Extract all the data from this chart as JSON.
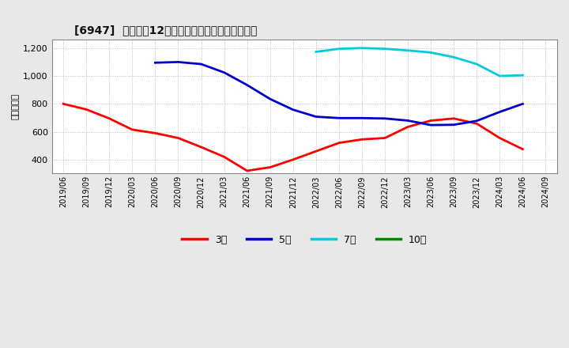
{
  "title": "[6947]  経常利益12か月移動合計の標準偏差の推移",
  "ylabel": "（百万円）",
  "ylim": [
    300,
    1260
  ],
  "yticks": [
    400,
    600,
    800,
    1000,
    1200
  ],
  "ytick_labels": [
    "400",
    "600",
    "800",
    "1,000",
    "1,200"
  ],
  "background_color": "#e8e8e8",
  "plot_background": "#ffffff",
  "grid_color": "#999999",
  "x_labels": [
    "2019/06",
    "2019/09",
    "2019/12",
    "2020/03",
    "2020/06",
    "2020/09",
    "2020/12",
    "2021/03",
    "2021/06",
    "2021/09",
    "2021/12",
    "2022/03",
    "2022/06",
    "2022/09",
    "2022/12",
    "2023/03",
    "2023/06",
    "2023/09",
    "2023/12",
    "2024/03",
    "2024/06",
    "2024/09"
  ],
  "series": [
    {
      "label": "3年",
      "color": "#ff0000",
      "y": [
        800,
        760,
        695,
        615,
        590,
        555,
        490,
        420,
        320,
        345,
        400,
        460,
        520,
        545,
        555,
        635,
        680,
        695,
        658,
        555,
        475,
        null
      ]
    },
    {
      "label": "5年",
      "color": "#0000cc",
      "y": [
        null,
        null,
        null,
        null,
        1095,
        1100,
        1085,
        1025,
        935,
        835,
        758,
        708,
        698,
        698,
        695,
        680,
        648,
        650,
        678,
        742,
        800,
        null
      ]
    },
    {
      "label": "7年",
      "color": "#00ccdd",
      "y": [
        null,
        null,
        null,
        null,
        null,
        null,
        null,
        null,
        null,
        null,
        null,
        1173,
        1195,
        1200,
        1195,
        1183,
        1168,
        1135,
        1085,
        1000,
        1005,
        null
      ]
    },
    {
      "label": "10年",
      "color": "#008800",
      "y": []
    }
  ],
  "legend_colors": [
    "#ff0000",
    "#0000cc",
    "#00ccdd",
    "#008800"
  ],
  "legend_labels": [
    "3年",
    "5年",
    "7年",
    "10年"
  ],
  "linewidth": 2.0
}
